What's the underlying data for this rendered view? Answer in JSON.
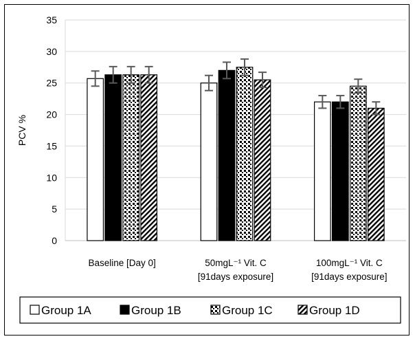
{
  "chart_data": {
    "type": "bar",
    "title": "",
    "ylabel": "PCV %",
    "xlabel": "",
    "ylim": [
      0,
      35
    ],
    "yticks": [
      0,
      5,
      10,
      15,
      20,
      25,
      30,
      35
    ],
    "grid": "horizontal",
    "legend_position": "bottom",
    "categories": [
      {
        "lines": [
          "Baseline [Day 0]"
        ]
      },
      {
        "lines": [
          "50mgL⁻¹ Vit. C",
          "[91days exposure]"
        ]
      },
      {
        "lines": [
          "100mgL⁻¹ Vit. C",
          "[91days exposure]"
        ]
      }
    ],
    "series": [
      {
        "name": "Group 1A",
        "pattern": "white",
        "values": [
          25.7,
          25.0,
          22.0
        ],
        "errors": [
          1.2,
          1.2,
          1.0
        ]
      },
      {
        "name": "Group 1B",
        "pattern": "black",
        "values": [
          26.3,
          27.0,
          22.0
        ],
        "errors": [
          1.3,
          1.3,
          1.0
        ]
      },
      {
        "name": "Group 1C",
        "pattern": "dots",
        "values": [
          26.3,
          27.5,
          24.5
        ],
        "errors": [
          1.3,
          1.3,
          1.1
        ]
      },
      {
        "name": "Group 1D",
        "pattern": "diagonal",
        "values": [
          26.3,
          25.5,
          21.0
        ],
        "errors": [
          1.3,
          1.2,
          1.0
        ]
      }
    ]
  }
}
